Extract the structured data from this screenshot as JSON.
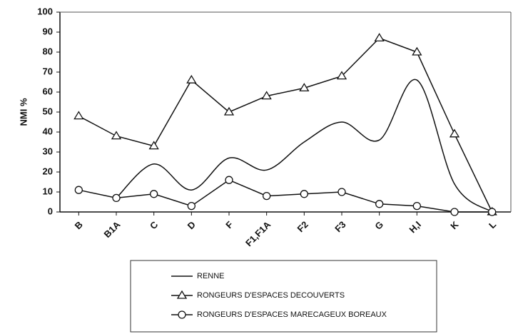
{
  "chart_data": {
    "type": "line",
    "ylabel": "NMI %",
    "categories": [
      "B",
      "B1A",
      "C",
      "D",
      "F",
      "F1,F1A",
      "F2",
      "F3",
      "G",
      "H,I",
      "K",
      "L"
    ],
    "series": [
      {
        "name": "RENNE",
        "color": "#111111",
        "marker": "none",
        "smooth": true,
        "values": [
          null,
          7,
          24,
          11,
          27,
          21,
          35,
          45,
          36,
          66,
          14,
          0
        ]
      },
      {
        "name": "RONGEURS D'ESPACES DECOUVERTS",
        "color": "#111111",
        "marker": "triangle",
        "smooth": false,
        "values": [
          48,
          38,
          33,
          66,
          50,
          58,
          62,
          68,
          87,
          80,
          39,
          0
        ]
      },
      {
        "name": "RONGEURS D'ESPACES MARECAGEUX BOREAUX",
        "color": "#111111",
        "marker": "circle",
        "smooth": false,
        "values": [
          11,
          7,
          9,
          3,
          16,
          8,
          9,
          10,
          4,
          3,
          0,
          0
        ]
      }
    ],
    "ylim": [
      0,
      100
    ],
    "yticks": [
      0,
      10,
      20,
      30,
      40,
      50,
      60,
      70,
      80,
      90,
      100
    ],
    "grid": false
  }
}
